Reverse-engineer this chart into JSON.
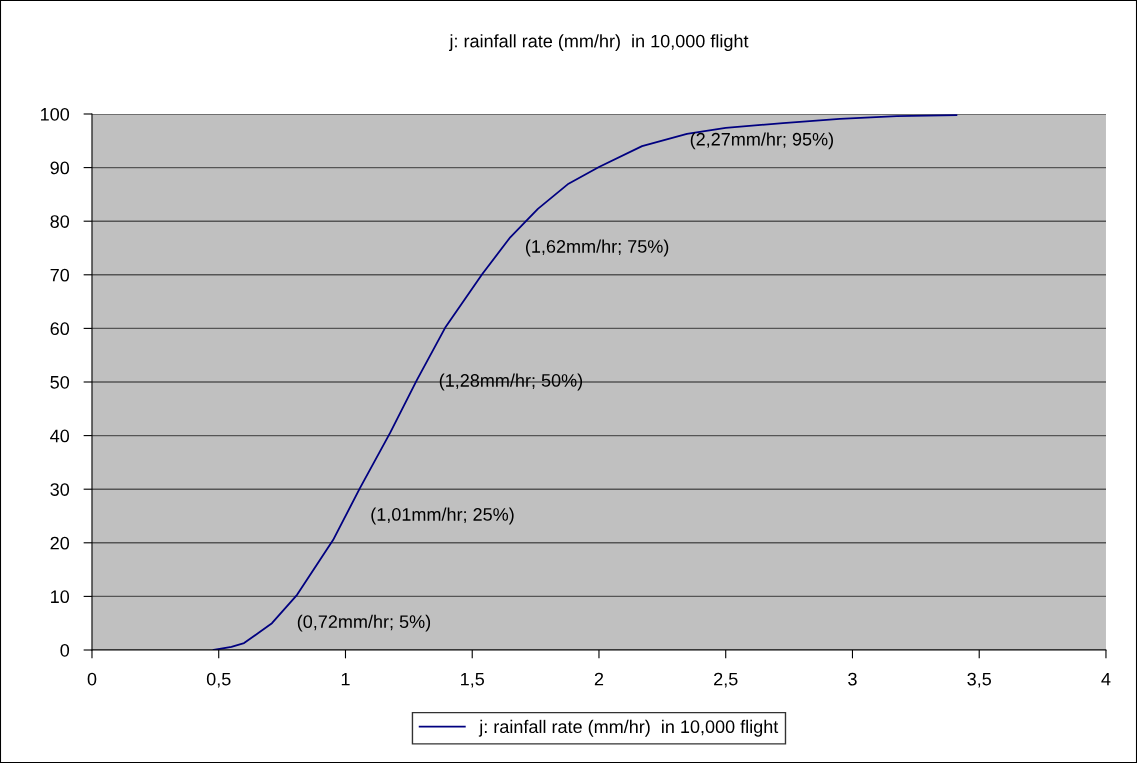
{
  "chart_data": {
    "type": "line",
    "title": "j: rainfall rate (mm/hr)  in 10,000 flight",
    "series": [
      {
        "name": "j: rainfall rate (mm/hr)  in 10,000 flight",
        "color": "#000080",
        "x": [
          0.48,
          0.55,
          0.6,
          0.663,
          0.71,
          0.809,
          0.951,
          1.057,
          1.176,
          1.282,
          1.393,
          1.539,
          1.65,
          1.759,
          1.88,
          2.0,
          2.17,
          2.347,
          2.5,
          2.726,
          2.95,
          3.175,
          3.41
        ],
        "values": [
          0,
          0.6,
          1.3,
          3.4,
          5.0,
          10.3,
          20.5,
          30.2,
          40.5,
          50.4,
          60.1,
          70.1,
          77,
          82.3,
          87,
          90.1,
          94,
          96.3,
          97.4,
          98.3,
          99.1,
          99.6,
          99.8
        ]
      }
    ],
    "xlim": [
      0,
      4
    ],
    "xticks": [
      0,
      {
        "value": 0.5,
        "label": "0,5"
      },
      1,
      {
        "value": 1.5,
        "label": "1,5"
      },
      2,
      {
        "value": 2.5,
        "label": "2,5"
      },
      3,
      {
        "value": 3.5,
        "label": "3,5"
      },
      4
    ],
    "ylim": [
      0,
      100
    ],
    "yticks": [
      0,
      10,
      20,
      30,
      40,
      50,
      60,
      70,
      80,
      90,
      100
    ],
    "grid": "y",
    "legend": "bottom",
    "marker": "none",
    "line_style": "solid",
    "annotations": [
      {
        "text": "(0,72mm/hr; 5%)",
        "x": 0.72,
        "y": 5
      },
      {
        "text": "(1,01mm/hr; 25%)",
        "x": 1.01,
        "y": 25
      },
      {
        "text": "(1,28mm/hr; 50%)",
        "x": 1.28,
        "y": 50
      },
      {
        "text": "(1,62mm/hr; 75%)",
        "x": 1.62,
        "y": 75
      },
      {
        "text": "(2,27mm/hr; 95%)",
        "x": 2.27,
        "y": 95
      }
    ]
  }
}
